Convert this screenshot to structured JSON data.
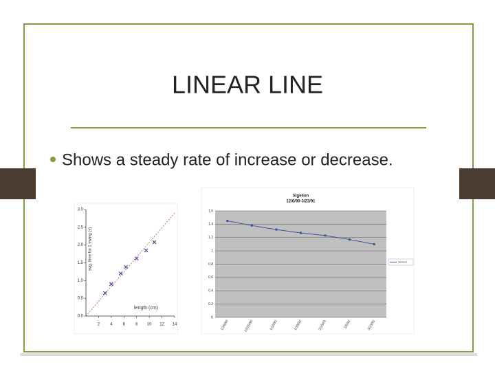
{
  "slide": {
    "title": "LINEAR LINE",
    "bullets": [
      "Shows a steady rate of increase or decrease."
    ]
  },
  "chart_data": [
    {
      "type": "scatter",
      "y_label": "avg. time for 1 swing (s)",
      "annotation": "length (cm)",
      "series": [
        {
          "color": "#2a2a8a",
          "x": [
            3,
            4,
            5.5,
            6.3,
            8,
            9.5,
            10.8
          ],
          "values": [
            0.65,
            0.9,
            1.2,
            1.38,
            1.62,
            1.85,
            2.08
          ]
        }
      ],
      "trend_color": "#c0392b",
      "xlim": [
        0,
        14
      ],
      "xticks": [
        2,
        4,
        6,
        8,
        10,
        12,
        14
      ],
      "ylim": [
        0,
        3
      ],
      "yticks": [
        {
          "value": 0,
          "label": "0.0"
        },
        {
          "value": 0.5,
          "label": "0.5"
        },
        {
          "value": 1,
          "label": "1.0"
        },
        {
          "value": 1.5,
          "label": "1.5"
        },
        {
          "value": 2,
          "label": "2.0"
        },
        {
          "value": 2.5,
          "label": "2.5"
        },
        {
          "value": 3,
          "label": "3.0"
        }
      ]
    },
    {
      "type": "line",
      "title": "Sigelion",
      "subtitle": "12/6/90-3/23/91",
      "categories": [
        "12/6/90",
        "12/25/90",
        "1/10/91",
        "1/28/91",
        "2/15/91",
        "3/5/91",
        "3/23/91"
      ],
      "series": [
        {
          "name": "Series1",
          "color": "#3b4ea0",
          "values": [
            1.45,
            1.38,
            1.32,
            1.27,
            1.23,
            1.17,
            1.1
          ]
        }
      ],
      "ylim": [
        0,
        1.6
      ],
      "yticks": [
        0,
        0.2,
        0.4,
        0.6,
        0.8,
        1,
        1.2,
        1.4,
        1.6
      ],
      "grid": true,
      "plot_background": "#c0c0c0",
      "legend": "right"
    }
  ]
}
